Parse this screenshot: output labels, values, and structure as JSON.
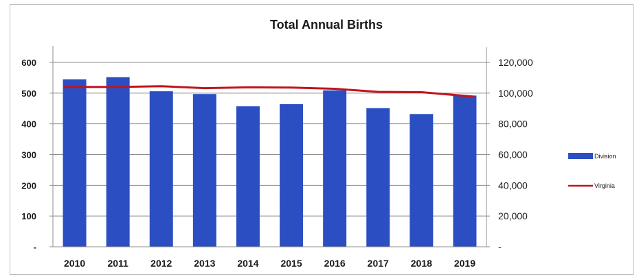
{
  "colors": {
    "bar": "#2b4fc2",
    "line": "#c0141c",
    "grid": "#8c8c8c",
    "axis": "#8c8c8c"
  },
  "chart_data": {
    "type": "bar",
    "title": "Total Annual Births",
    "categories": [
      "2010",
      "2011",
      "2012",
      "2013",
      "2014",
      "2015",
      "2016",
      "2017",
      "2018",
      "2019"
    ],
    "series": [
      {
        "name": "Division",
        "type": "bar",
        "axis": "left",
        "values": [
          545,
          552,
          506,
          497,
          457,
          464,
          509,
          451,
          432,
          492
        ]
      },
      {
        "name": "Virginia",
        "type": "line",
        "axis": "right",
        "values": [
          104000,
          104000,
          104500,
          103200,
          103800,
          103600,
          102800,
          100800,
          100600,
          97700
        ]
      }
    ],
    "y_left": {
      "ylim": [
        0,
        600
      ],
      "ticks": [
        "-",
        "100",
        "200",
        "300",
        "400",
        "500",
        "600"
      ]
    },
    "y_right": {
      "ylim": [
        0,
        120000
      ],
      "ticks": [
        "-",
        "20,000",
        "40,000",
        "60,000",
        "80,000",
        "100,000",
        "120,000"
      ]
    },
    "grid": true,
    "legend": "right"
  }
}
